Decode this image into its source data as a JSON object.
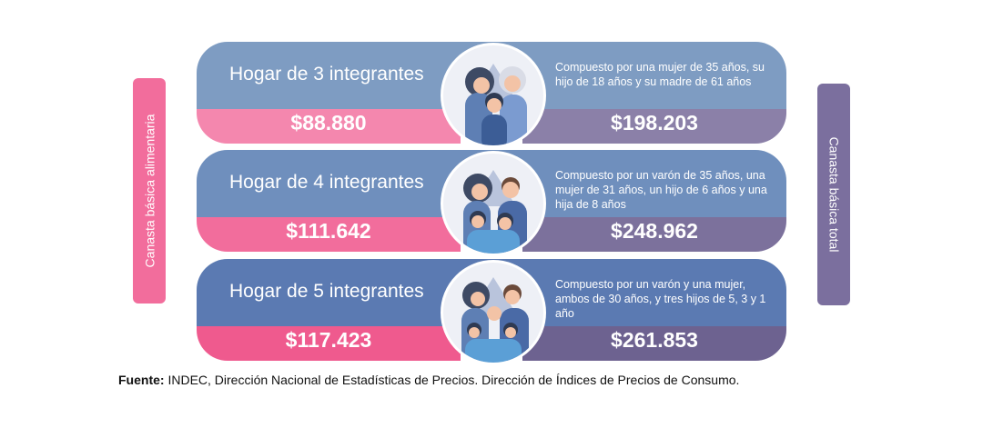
{
  "side_left": {
    "label": "Canasta básica alimentaria",
    "color": "#f26d9c"
  },
  "side_right": {
    "label": "Canasta básica total",
    "color": "#7b6f9e"
  },
  "cards": [
    {
      "title": "Hogar de 3 integrantes",
      "description": "Compuesto por una mujer de 35 años, su hijo de 18 años y su madre de 61 años",
      "cba": "$88.880",
      "cbt": "$198.203",
      "illustration": "family-3-icon"
    },
    {
      "title": "Hogar de 4 integrantes",
      "description": "Compuesto por un varón de 35 años, una mujer de 31 años, un hijo de 6 años y una hija de 8 años",
      "cba": "$111.642",
      "cbt": "$248.962",
      "illustration": "family-4-icon"
    },
    {
      "title": "Hogar de 5 integrantes",
      "description": "Compuesto por un varón y una mujer, ambos de 30 años, y tres hijos de 5, 3 y 1 año",
      "cba": "$117.423",
      "cbt": "$261.853",
      "illustration": "family-5-icon"
    }
  ],
  "source": {
    "label": "Fuente:",
    "text": "INDEC, Dirección Nacional de Estadísticas de Precios. Dirección de Índices de Precios de Consumo."
  }
}
